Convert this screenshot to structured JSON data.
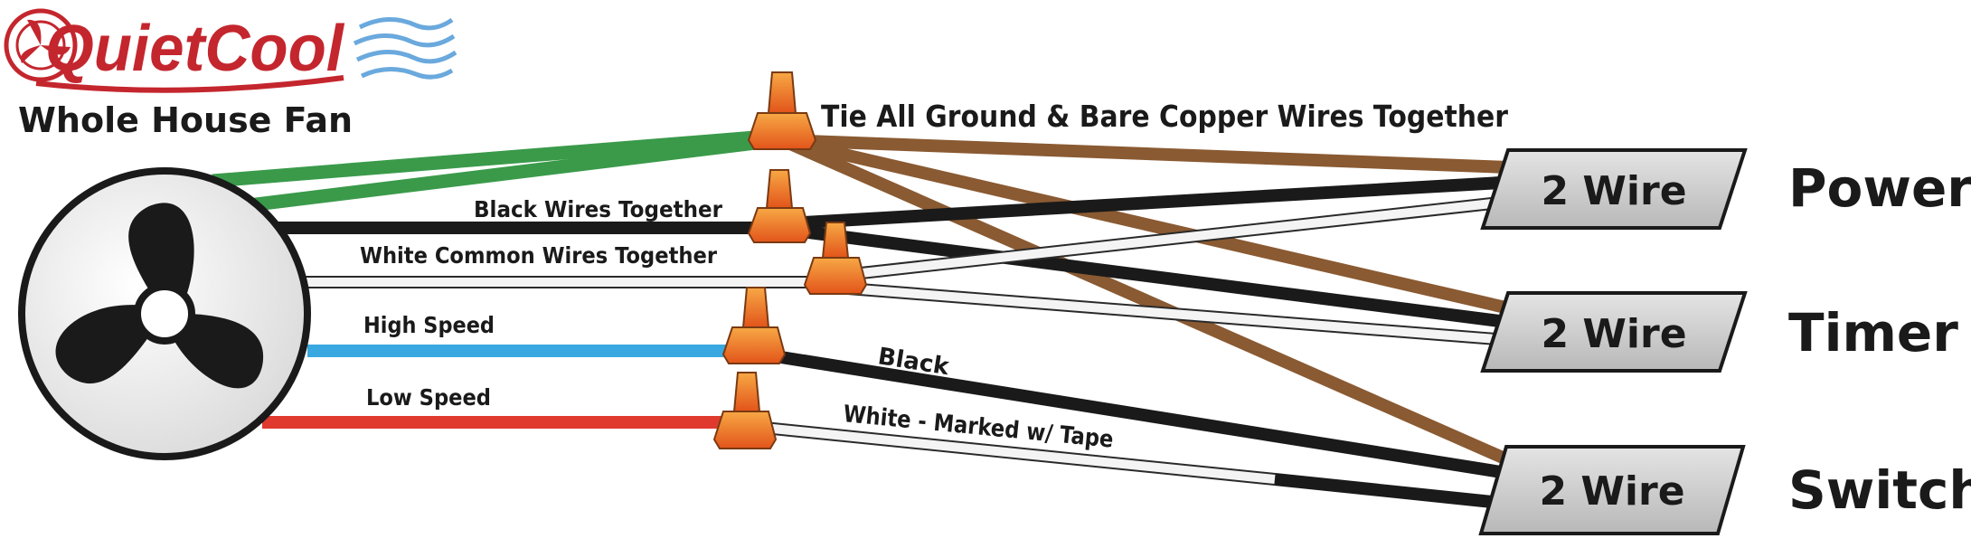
{
  "brand": {
    "logo_text": "QuietCool",
    "subtitle": "Whole House Fan",
    "colors": {
      "red": "#c4262e",
      "blue": "#1f6fb5"
    }
  },
  "labels": {
    "ground": "Tie All Ground & Bare Copper Wires Together",
    "black_together": "Black Wires Together",
    "white_common": "White Common Wires Together",
    "high_speed": "High Speed",
    "low_speed": "Low Speed",
    "black": "Black",
    "white_marked": "White - Marked w/ Tape"
  },
  "terminals": [
    {
      "cable": "2 Wire",
      "name": "Power"
    },
    {
      "cable": "2 Wire",
      "name": "Timer"
    },
    {
      "cable": "2 Wire",
      "name": "Switch"
    }
  ],
  "wire_colors": {
    "ground_green": "#3a9a4a",
    "copper": "#8a5a32",
    "black": "#1a1a1a",
    "white": "#f4f4f4",
    "high_speed": "#3aa8e0",
    "low_speed": "#e03a2e",
    "wire_nut": "#ef7a28"
  }
}
